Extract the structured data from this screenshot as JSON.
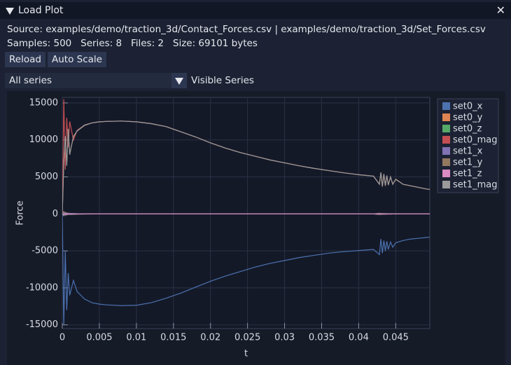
{
  "window": {
    "title": "Load Plot"
  },
  "info": {
    "source": "Source: examples/demo/traction_3d/Contact_Forces.csv | examples/demo/traction_3d/Set_Forces.csv",
    "stats": "Samples: 500   Series: 8   Files: 2   Size: 69101 bytes"
  },
  "buttons": [
    "Reload",
    "Auto Scale"
  ],
  "series_combo": "All series",
  "visible_label": "Visible Series",
  "chart_data": {
    "type": "line",
    "x_label": "t",
    "y_label": "Force",
    "xlim": [
      0,
      0.0496
    ],
    "ylim": [
      -15500,
      15750
    ],
    "xticks": [
      0,
      0.005,
      0.01,
      0.015,
      0.02,
      0.025,
      0.03,
      0.035,
      0.04,
      0.045
    ],
    "yticks": [
      -15000,
      -10000,
      -5000,
      0,
      5000,
      10000,
      15000
    ],
    "grid": true,
    "legend": "top-right",
    "x": [
      0,
      0.0002,
      0.0004,
      0.0006,
      0.0008,
      0.001,
      0.0015,
      0.002,
      0.003,
      0.004,
      0.005,
      0.006,
      0.008,
      0.01,
      0.012,
      0.014,
      0.016,
      0.018,
      0.02,
      0.022,
      0.024,
      0.026,
      0.028,
      0.03,
      0.032,
      0.034,
      0.036,
      0.038,
      0.04,
      0.042,
      0.0428,
      0.043,
      0.0432,
      0.0434,
      0.0436,
      0.0438,
      0.044,
      0.0443,
      0.0446,
      0.045,
      0.046,
      0.047,
      0.048,
      0.049,
      0.0496
    ],
    "series": [
      {
        "name": "set0_x",
        "color": "#4c72b0",
        "values": [
          0,
          -15000,
          -5000,
          -13000,
          -8000,
          -11000,
          -9000,
          -10500,
          -11500,
          -12000,
          -12200,
          -12300,
          -12400,
          -12350,
          -12000,
          -11400,
          -10700,
          -9900,
          -9100,
          -8400,
          -7800,
          -7200,
          -6700,
          -6300,
          -5900,
          -5600,
          -5300,
          -5100,
          -4950,
          -4800,
          -5500,
          -3400,
          -5300,
          -3600,
          -5000,
          -3700,
          -4800,
          -3800,
          -4500,
          -3900,
          -3600,
          -3400,
          -3300,
          -3200,
          -3150
        ]
      },
      {
        "name": "set0_y",
        "color": "#dd8452",
        "values": [
          0,
          300,
          -200,
          150,
          -100,
          80,
          50,
          30,
          20,
          10,
          0,
          0,
          0,
          0,
          0,
          0,
          0,
          0,
          0,
          0,
          0,
          0,
          0,
          0,
          0,
          0,
          0,
          0,
          0,
          0,
          100,
          -100,
          80,
          -80,
          60,
          -60,
          40,
          -40,
          30,
          -20,
          10,
          0,
          0,
          0,
          0
        ]
      },
      {
        "name": "set0_z",
        "color": "#55a868",
        "values": [
          0,
          -250,
          200,
          -150,
          100,
          -80,
          -50,
          -30,
          -20,
          -10,
          0,
          0,
          0,
          0,
          0,
          0,
          0,
          0,
          0,
          0,
          0,
          0,
          0,
          0,
          0,
          0,
          0,
          0,
          0,
          0,
          -80,
          80,
          -60,
          60,
          -40,
          40,
          -30,
          30,
          -20,
          10,
          0,
          0,
          0,
          0,
          0
        ]
      },
      {
        "name": "set0_mag",
        "color": "#c44e52",
        "values": [
          0,
          15500,
          6000,
          13000,
          9000,
          12500,
          10000,
          11300,
          12000,
          12300,
          12450,
          12500,
          12550,
          12450,
          12200,
          11800,
          11100,
          10400,
          9600,
          8900,
          8300,
          7800,
          7300,
          6900,
          6500,
          6150,
          5850,
          5550,
          5300,
          5100,
          4000,
          5600,
          3700,
          5400,
          3800,
          5200,
          3900,
          5000,
          4000,
          4700,
          4000,
          3800,
          3600,
          3400,
          3300
        ]
      },
      {
        "name": "set1_x",
        "color": "#8172b3",
        "values": [
          0,
          200,
          -150,
          100,
          -80,
          60,
          40,
          20,
          10,
          0,
          0,
          0,
          0,
          0,
          0,
          0,
          0,
          0,
          0,
          0,
          0,
          0,
          0,
          0,
          0,
          0,
          0,
          0,
          0,
          0,
          60,
          -60,
          50,
          -50,
          40,
          -40,
          30,
          -30,
          20,
          -10,
          0,
          0,
          0,
          0,
          0
        ]
      },
      {
        "name": "set1_y",
        "color": "#937860",
        "values": [
          0,
          6900,
          10400,
          6600,
          11400,
          8100,
          10400,
          11200,
          11950,
          12300,
          12450,
          12500,
          12550,
          12450,
          12200,
          11800,
          11100,
          10400,
          9600,
          8900,
          8300,
          7800,
          7300,
          6900,
          6500,
          6150,
          5850,
          5550,
          5300,
          5100,
          4050,
          5550,
          3750,
          5350,
          3850,
          5150,
          3950,
          4950,
          4050,
          4650,
          4000,
          3800,
          3600,
          3400,
          3300
        ]
      },
      {
        "name": "set1_z",
        "color": "#da8bc3",
        "values": [
          0,
          -150,
          120,
          -100,
          80,
          -50,
          -30,
          -20,
          -10,
          0,
          0,
          0,
          0,
          0,
          0,
          0,
          0,
          0,
          0,
          0,
          0,
          0,
          0,
          0,
          0,
          0,
          0,
          0,
          0,
          0,
          -50,
          50,
          -40,
          40,
          -30,
          30,
          -20,
          20,
          -10,
          10,
          0,
          0,
          0,
          0,
          0
        ]
      },
      {
        "name": "set1_mag",
        "color": "#9a9a9a",
        "values": [
          0,
          7000,
          10500,
          6500,
          11500,
          8000,
          10500,
          11200,
          12000,
          12300,
          12450,
          12500,
          12550,
          12450,
          12200,
          11800,
          11100,
          10400,
          9600,
          8900,
          8300,
          7800,
          7300,
          6900,
          6500,
          6150,
          5850,
          5550,
          5300,
          5100,
          4000,
          5600,
          3700,
          5400,
          3800,
          5200,
          3900,
          5000,
          4000,
          4700,
          4000,
          3800,
          3600,
          3400,
          3300
        ]
      }
    ]
  }
}
